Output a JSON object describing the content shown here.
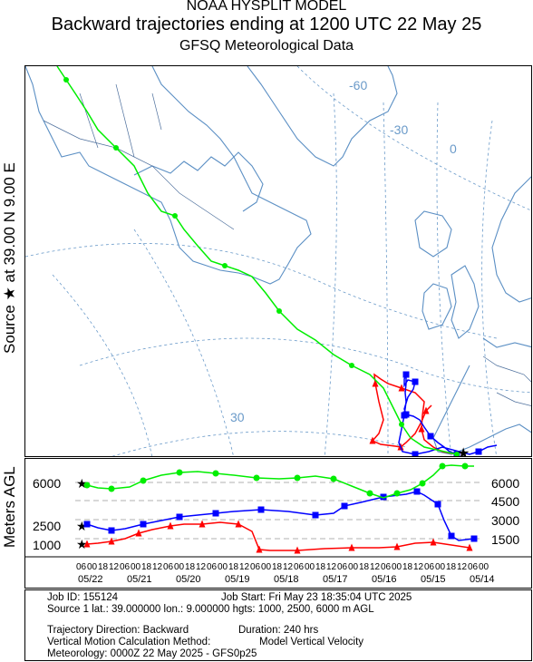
{
  "header": {
    "line1": "NOAA HYSPLIT MODEL",
    "line2": "Backward trajectories ending at 1200 UTC 22 May 25",
    "line3": "GFSQ Meteorological Data"
  },
  "side_label": "Source ★ at    39.00 N    9.00 E",
  "map": {
    "graticule_labels": [
      "-60",
      "-30",
      "0",
      "30"
    ],
    "source": {
      "lat": 39.0,
      "lon": 9.0
    },
    "colors": {
      "coast": "#5b8fc4",
      "grid": "#6a9ac9",
      "border": "#4d6f9c"
    }
  },
  "profile": {
    "ylabel": "Meters AGL",
    "left_ticks": [
      "6000",
      "2500",
      "1000"
    ],
    "right_ticks": [
      "6000",
      "4500",
      "3000",
      "1500"
    ],
    "hour_ticks": [
      "06",
      "00",
      "18",
      "12",
      "06",
      "00",
      "18",
      "12",
      "06",
      "00",
      "18",
      "12",
      "06",
      "00",
      "18",
      "12",
      "06",
      "00",
      "18",
      "12",
      "06",
      "00",
      "18",
      "12",
      "06",
      "00",
      "18",
      "12",
      "06",
      "00",
      "18",
      "12",
      "06",
      "00",
      "18",
      "12",
      "06",
      "00"
    ],
    "dates": [
      "05/22",
      "05/21",
      "05/20",
      "05/19",
      "05/18",
      "05/17",
      "05/16",
      "05/15",
      "05/14"
    ]
  },
  "trajectories": [
    {
      "name": "1000 m AGL",
      "color": "#ff0000",
      "marker": "triangle"
    },
    {
      "name": "2500 m AGL",
      "color": "#0000ff",
      "marker": "square"
    },
    {
      "name": "6000 m AGL",
      "color": "#00ee00",
      "marker": "circle"
    }
  ],
  "info": {
    "job_id": "Job ID: 155124",
    "job_start": "Job Start: Fri May 23 18:35:04 UTC 2025",
    "source_line": "Source 1 lat.: 39.000000  lon.: 9.000000  hgts: 1000, 2500, 6000 m AGL",
    "direction": "Trajectory Direction: Backward",
    "duration": "Duration: 240 hrs",
    "vertical": "Vertical Motion Calculation Method:",
    "vertical_value": "Model Vertical Velocity",
    "meteorology": "Meteorology: 0000Z 22 May 2025 - GFS0p25"
  }
}
